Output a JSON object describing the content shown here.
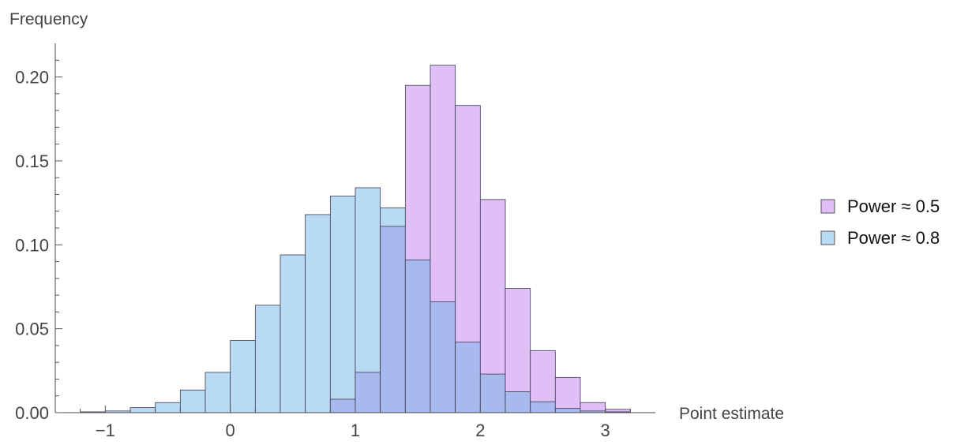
{
  "chart_data": {
    "type": "bar",
    "bin_edges": [
      -1.2,
      -1.0,
      -0.8,
      -0.6,
      -0.4,
      -0.2,
      0.0,
      0.2,
      0.4,
      0.6,
      0.8,
      1.0,
      1.2,
      1.4,
      1.6,
      1.8,
      2.0,
      2.2,
      2.4,
      2.6,
      2.8,
      3.0,
      3.2
    ],
    "series": [
      {
        "name": "Power ≈ 0.5",
        "color": "#e0bff7",
        "values": [
          0,
          0,
          0,
          0,
          0,
          0,
          0,
          0,
          0,
          0,
          0.008,
          0.024,
          0.111,
          0.195,
          0.207,
          0.183,
          0.127,
          0.074,
          0.037,
          0.021,
          0.006,
          0.002
        ]
      },
      {
        "name": "Power ≈ 0.8",
        "color": "#b9daf3",
        "values": [
          0.0005,
          0.001,
          0.003,
          0.006,
          0.0135,
          0.024,
          0.043,
          0.064,
          0.094,
          0.118,
          0.129,
          0.134,
          0.122,
          0.091,
          0.066,
          0.042,
          0.023,
          0.0125,
          0.0065,
          0.0025,
          0.001,
          0.0005
        ]
      }
    ],
    "overlap_color": "#a8b9ee",
    "xlabel": "Point estimate",
    "ylabel": "Frequency",
    "xlim": [
      -1.4,
      3.4
    ],
    "ylim": [
      0,
      0.22
    ],
    "x_ticks": [
      -1,
      0,
      1,
      2,
      3
    ],
    "x_tick_labels": [
      "−1",
      "0",
      "1",
      "2",
      "3"
    ],
    "y_ticks": [
      0,
      0.05,
      0.1,
      0.15,
      0.2
    ],
    "y_tick_labels": [
      "0.00",
      "0.05",
      "0.10",
      "0.15",
      "0.20"
    ],
    "grid": false,
    "legend_position": "right"
  }
}
